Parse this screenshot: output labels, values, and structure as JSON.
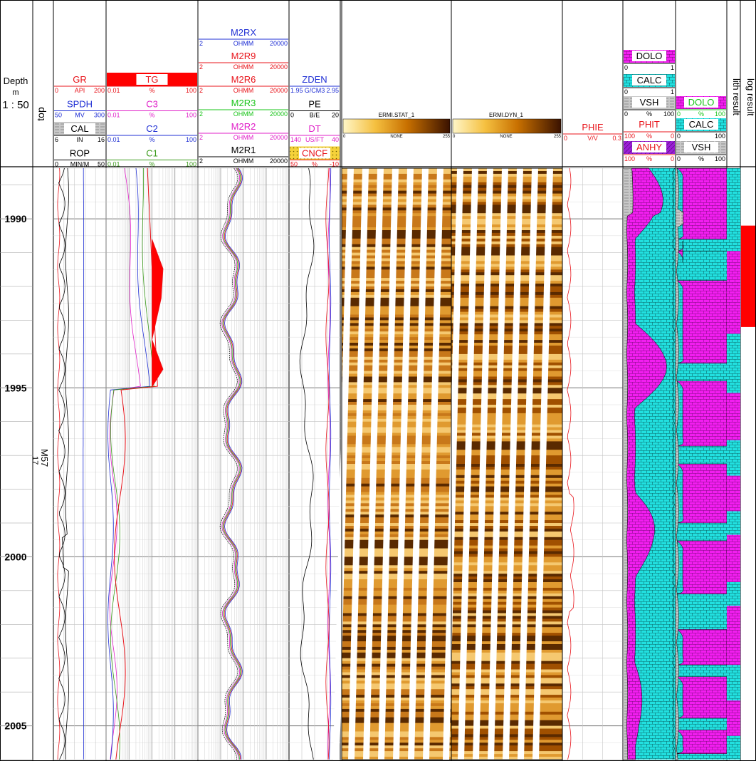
{
  "header": {
    "depth_title": "Depth",
    "depth_unit": "m",
    "scale": "1 : 50",
    "top_label": "top",
    "log_result_label": "log result",
    "lith_result_label": "lith result"
  },
  "depth_axis": {
    "min": 1988.5,
    "max": 2006.0,
    "major_ticks": [
      1990,
      1995,
      2000,
      2005
    ]
  },
  "formation": {
    "name": "M57",
    "index": "17"
  },
  "tracks": {
    "t1": {
      "curves": [
        {
          "name": "GR",
          "min": "0",
          "unit": "API",
          "max": "200",
          "color": "#e8141b"
        },
        {
          "name": "SPDH",
          "min": "50",
          "unit": "MV",
          "max": "300",
          "color": "#1f2fd4"
        },
        {
          "name": "CAL",
          "min": "6",
          "unit": "IN",
          "max": "16",
          "color": "#000000"
        },
        {
          "name": "ROP",
          "min": "0",
          "unit": "MIN/M",
          "max": "50",
          "color": "#000000"
        }
      ]
    },
    "t2": {
      "curves": [
        {
          "name": "TG",
          "min": "0.01",
          "unit": "%",
          "max": "100",
          "color": "#e8141b"
        },
        {
          "name": "C3",
          "min": "0.01",
          "unit": "%",
          "max": "100",
          "color": "#e020c8"
        },
        {
          "name": "C2",
          "min": "0.01",
          "unit": "%",
          "max": "100",
          "color": "#1f2fd4"
        },
        {
          "name": "C1",
          "min": "0.01",
          "unit": "%",
          "max": "100",
          "color": "#3a9a1a"
        }
      ]
    },
    "t3": {
      "curves": [
        {
          "name": "M2RX",
          "min": "2",
          "unit": "OHMM",
          "max": "20000",
          "color": "#1f2fd4"
        },
        {
          "name": "M2R9",
          "min": "2",
          "unit": "OHMM",
          "max": "20000",
          "color": "#e8141b"
        },
        {
          "name": "M2R6",
          "min": "2",
          "unit": "OHMM",
          "max": "20000",
          "color": "#e8141b"
        },
        {
          "name": "M2R3",
          "min": "2",
          "unit": "OHMM",
          "max": "20000",
          "color": "#18c418"
        },
        {
          "name": "M2R2",
          "min": "2",
          "unit": "OHMM",
          "max": "20000",
          "color": "#e020c8"
        },
        {
          "name": "M2R1",
          "min": "2",
          "unit": "OHMM",
          "max": "20000",
          "color": "#000000"
        }
      ]
    },
    "t4": {
      "curves": [
        {
          "name": "ZDEN",
          "min": "1.95",
          "unit": "G/CM3",
          "max": "2.95",
          "color": "#1f2fd4"
        },
        {
          "name": "PE",
          "min": "0",
          "unit": "B/E",
          "max": "20",
          "color": "#000000"
        },
        {
          "name": "DT",
          "min": "140",
          "unit": "US/FT",
          "max": "40",
          "color": "#e020c8"
        },
        {
          "name": "CNCF",
          "min": "50",
          "unit": "%",
          "max": "-10",
          "color": "#e8141b"
        }
      ]
    },
    "t5": {
      "name": "ERMI.STAT_1",
      "unit": "NONE",
      "min": "0",
      "max": "255"
    },
    "t6": {
      "name": "ERMI.DYN_1",
      "unit": "NONE",
      "min": "0",
      "max": "255"
    },
    "t7": {
      "curves": [
        {
          "name": "PHIE",
          "min": "0",
          "unit": "V/V",
          "max": "0.3",
          "color": "#e8141b"
        }
      ]
    },
    "t8": {
      "items": [
        {
          "name": "DOLO",
          "min": "0",
          "max": "1"
        },
        {
          "name": "CALC",
          "min": "0",
          "max": "1"
        },
        {
          "name": "VSH",
          "min": "0",
          "unit": "%",
          "max": "100"
        },
        {
          "name": "PHIT",
          "min": "100",
          "unit": "%",
          "max": "0"
        },
        {
          "name": "ANHY",
          "min": "100",
          "unit": "%",
          "max": "0"
        }
      ]
    },
    "t9": {
      "items": [
        {
          "name": "DOLO",
          "min": "0",
          "unit": "%",
          "max": "100"
        },
        {
          "name": "CALC",
          "min": "0",
          "max": "100"
        },
        {
          "name": "VSH",
          "min": "0",
          "unit": "%",
          "max": "100"
        }
      ]
    }
  },
  "colors": {
    "calc": "#22e0e0",
    "dolo": "#f21ef0",
    "anhy": "#9a1fd6",
    "vsh": "#c8c8c8",
    "cncf_fill": "#f5d23a",
    "tg_fill": "#ff0000",
    "log_result": "#ff0000"
  },
  "log_result": {
    "top": 1990.2,
    "bottom": 1993.2
  }
}
